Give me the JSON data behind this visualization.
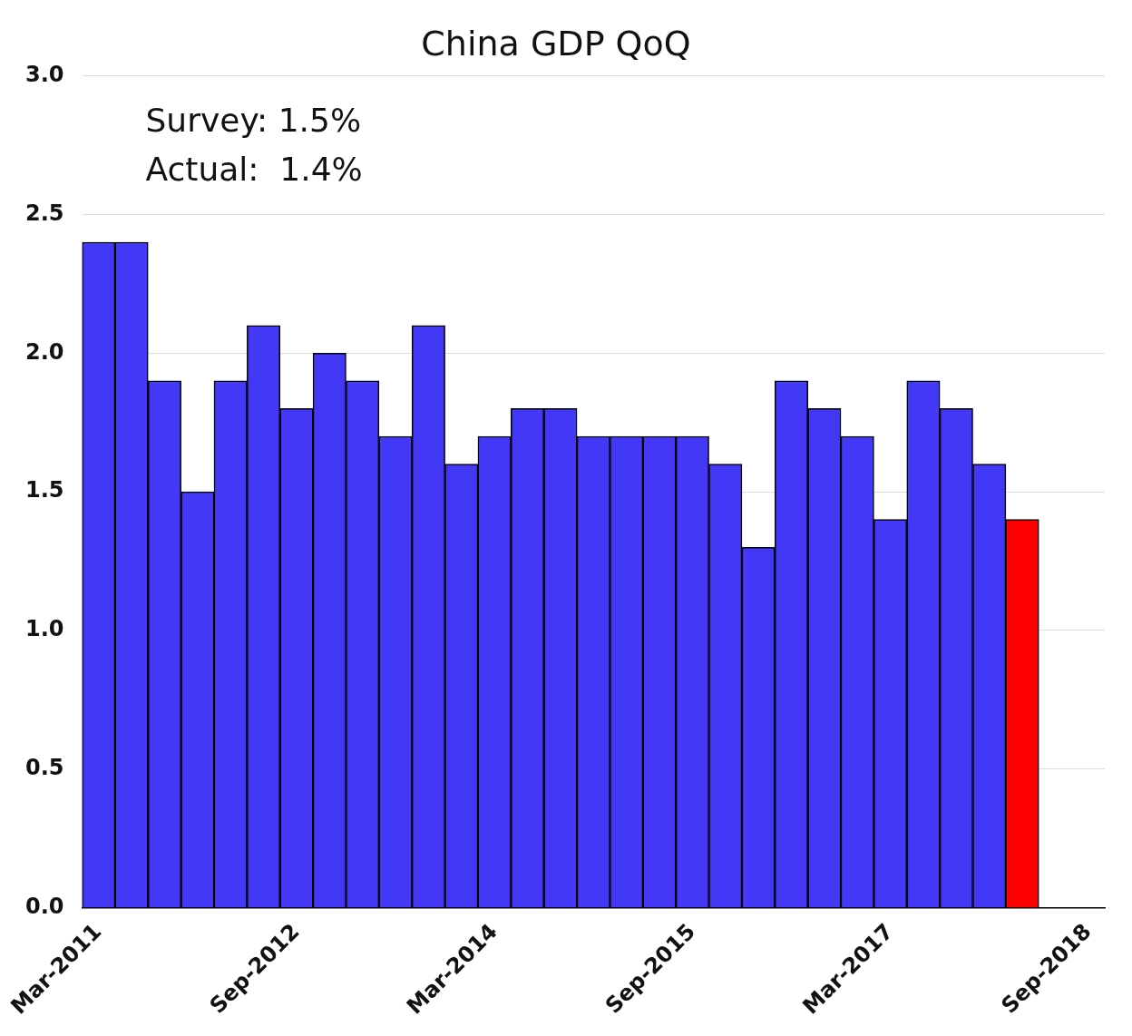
{
  "chart_data": {
    "type": "bar",
    "title": "China GDP QoQ",
    "categories": [
      "Mar-2011",
      null,
      null,
      null,
      null,
      null,
      "Sep-2012",
      null,
      null,
      null,
      null,
      null,
      "Mar-2014",
      null,
      null,
      null,
      null,
      null,
      "Sep-2015",
      null,
      null,
      null,
      null,
      null,
      "Mar-2017",
      null,
      null,
      null,
      null,
      null,
      "Sep-2018"
    ],
    "values": [
      2.4,
      2.4,
      1.9,
      1.5,
      1.9,
      2.1,
      1.8,
      2.0,
      1.9,
      1.7,
      2.1,
      1.6,
      1.7,
      1.8,
      1.8,
      1.7,
      1.7,
      1.7,
      1.7,
      1.6,
      1.3,
      1.9,
      1.8,
      1.7,
      1.4,
      1.9,
      1.8,
      1.6,
      1.4,
      null,
      null
    ],
    "colors": [
      "#4338f5",
      "#4338f5",
      "#4338f5",
      "#4338f5",
      "#4338f5",
      "#4338f5",
      "#4338f5",
      "#4338f5",
      "#4338f5",
      "#4338f5",
      "#4338f5",
      "#4338f5",
      "#4338f5",
      "#4338f5",
      "#4338f5",
      "#4338f5",
      "#4338f5",
      "#4338f5",
      "#4338f5",
      "#4338f5",
      "#4338f5",
      "#4338f5",
      "#4338f5",
      "#4338f5",
      "#4338f5",
      "#4338f5",
      "#4338f5",
      "#4338f5",
      "#ff0000",
      "#4338f5",
      "#4338f5"
    ],
    "ylim": [
      0,
      3
    ],
    "yticks": [
      {
        "value": 0,
        "label": "0.0"
      },
      0.5,
      {
        "value": 1,
        "label": "1.0"
      },
      1.5,
      {
        "value": 2,
        "label": "2.0"
      },
      2.5,
      {
        "value": 3,
        "label": "3.0"
      }
    ],
    "grid": "y",
    "annotations": [
      "Survey: 1.5%",
      "Actual:  1.4%"
    ]
  }
}
